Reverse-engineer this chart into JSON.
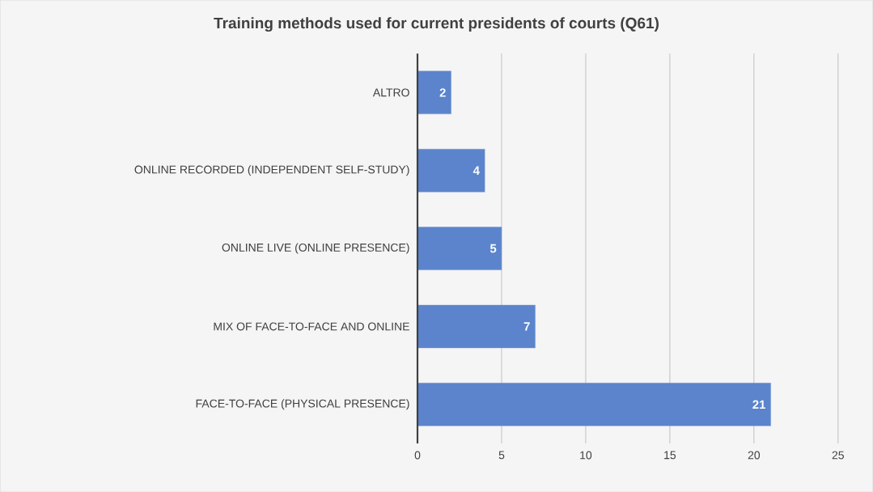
{
  "chart_data": {
    "type": "bar",
    "orientation": "horizontal",
    "title": "Training methods used for current presidents of courts  (Q61)",
    "categories": [
      "ALTRO",
      "ONLINE RECORDED (INDEPENDENT SELF-STUDY)",
      "ONLINE LIVE (ONLINE PRESENCE)",
      "MIX OF FACE-TO-FACE AND ONLINE",
      "FACE-TO-FACE (PHYSICAL PRESENCE)"
    ],
    "values": [
      2,
      4,
      5,
      7,
      21
    ],
    "color": "#5b84cc",
    "xlim": [
      0,
      25
    ],
    "xticks": [
      0,
      5,
      10,
      15,
      20,
      25
    ],
    "grid": "x",
    "data_labels": true
  }
}
